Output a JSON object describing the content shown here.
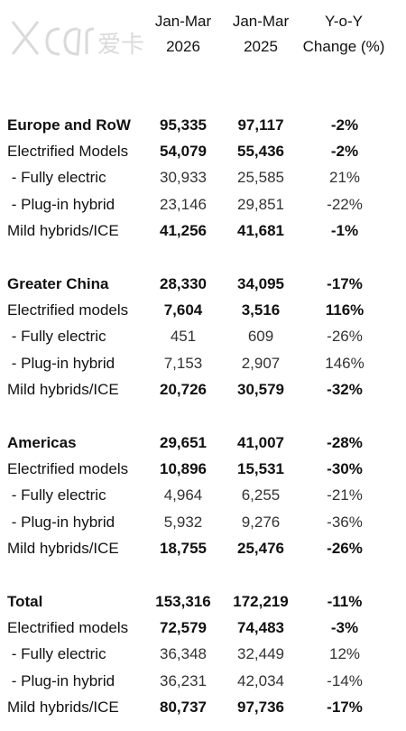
{
  "header": {
    "col1": [
      "Jan-Mar",
      "2026"
    ],
    "col2": [
      "Jan-Mar",
      "2025"
    ],
    "col3": [
      "Y-o-Y",
      "Change (%)"
    ]
  },
  "sections": [
    {
      "rows": [
        {
          "label": "Europe and RoW",
          "v1": "95,335",
          "v2": "97,117",
          "v3": "-2%"
        },
        {
          "label": "Electrified Models",
          "v1": "54,079",
          "v2": "55,436",
          "v3": "-2%"
        },
        {
          "label": " - Fully electric",
          "v1": "30,933",
          "v2": "25,585",
          "v3": "21%"
        },
        {
          "label": " - Plug-in hybrid",
          "v1": "23,146",
          "v2": "29,851",
          "v3": "-22%"
        },
        {
          "label": "Mild hybrids/ICE",
          "v1": "41,256",
          "v2": "41,681",
          "v3": "-1%"
        }
      ]
    },
    {
      "rows": [
        {
          "label": "Greater China",
          "v1": "28,330",
          "v2": "34,095",
          "v3": "-17%"
        },
        {
          "label": "Electrified models",
          "v1": "7,604",
          "v2": "3,516",
          "v3": "116%"
        },
        {
          "label": " - Fully electric",
          "v1": "451",
          "v2": "609",
          "v3": "-26%"
        },
        {
          "label": " - Plug-in hybrid",
          "v1": "7,153",
          "v2": "2,907",
          "v3": "146%"
        },
        {
          "label": "Mild hybrids/ICE",
          "v1": "20,726",
          "v2": "30,579",
          "v3": "-32%"
        }
      ]
    },
    {
      "rows": [
        {
          "label": "Americas",
          "v1": "29,651",
          "v2": "41,007",
          "v3": "-28%"
        },
        {
          "label": "Electrified models",
          "v1": "10,896",
          "v2": "15,531",
          "v3": "-30%"
        },
        {
          "label": " - Fully electric",
          "v1": "4,964",
          "v2": "6,255",
          "v3": "-21%"
        },
        {
          "label": " - Plug-in hybrid",
          "v1": "5,932",
          "v2": "9,276",
          "v3": "-36%"
        },
        {
          "label": "Mild hybrids/ICE",
          "v1": "18,755",
          "v2": "25,476",
          "v3": "-26%"
        }
      ]
    },
    {
      "rows": [
        {
          "label": "Total",
          "v1": "153,316",
          "v2": "172,219",
          "v3": "-11%"
        },
        {
          "label": "Electrified models",
          "v1": "72,579",
          "v2": "74,483",
          "v3": "-3%"
        },
        {
          "label": " - Fully electric",
          "v1": "36,348",
          "v2": "32,449",
          "v3": "12%"
        },
        {
          "label": " - Plug-in hybrid",
          "v1": "36,231",
          "v2": "42,034",
          "v3": "-14%"
        },
        {
          "label": "Mild hybrids/ICE",
          "v1": "80,737",
          "v2": "97,736",
          "v3": "-17%"
        }
      ]
    }
  ],
  "logo": {
    "icon": "xcar-watermark-logo",
    "text": "XCAR爱卡"
  }
}
